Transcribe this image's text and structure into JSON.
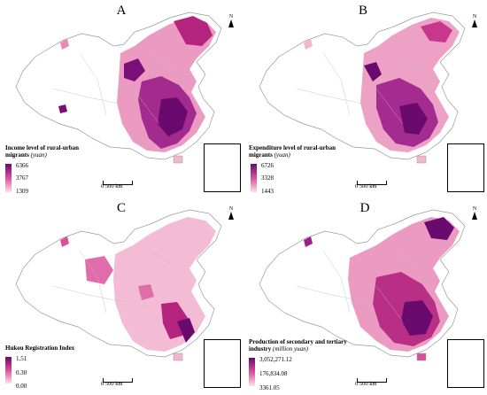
{
  "panels": [
    {
      "label": "A",
      "legend_title": "Income level of rural-urban migrants",
      "legend_unit": "(yuan)",
      "legend_values": [
        "6366",
        "3767",
        "1309"
      ]
    },
    {
      "label": "B",
      "legend_title": "Expenditure level of rural-urban migrants",
      "legend_unit": "(yuan)",
      "legend_values": [
        "6726",
        "3328",
        "1443"
      ]
    },
    {
      "label": "C",
      "legend_title": "Hukou Registration Index",
      "legend_unit": "",
      "legend_values": [
        "1.51",
        "0.30",
        "0.00"
      ]
    },
    {
      "label": "D",
      "legend_title": "Production of secondary and tertiary industry",
      "legend_unit": "(million yuan)",
      "legend_values": [
        "3,052,271.12",
        "176,834.08",
        "3361.05"
      ]
    }
  ],
  "scale_label": "0      500 km",
  "north_label": "N",
  "colors": {
    "high": "#6a0a6e",
    "mid": "#d9509a",
    "low": "#fde0ea",
    "none": "#ffffff"
  }
}
